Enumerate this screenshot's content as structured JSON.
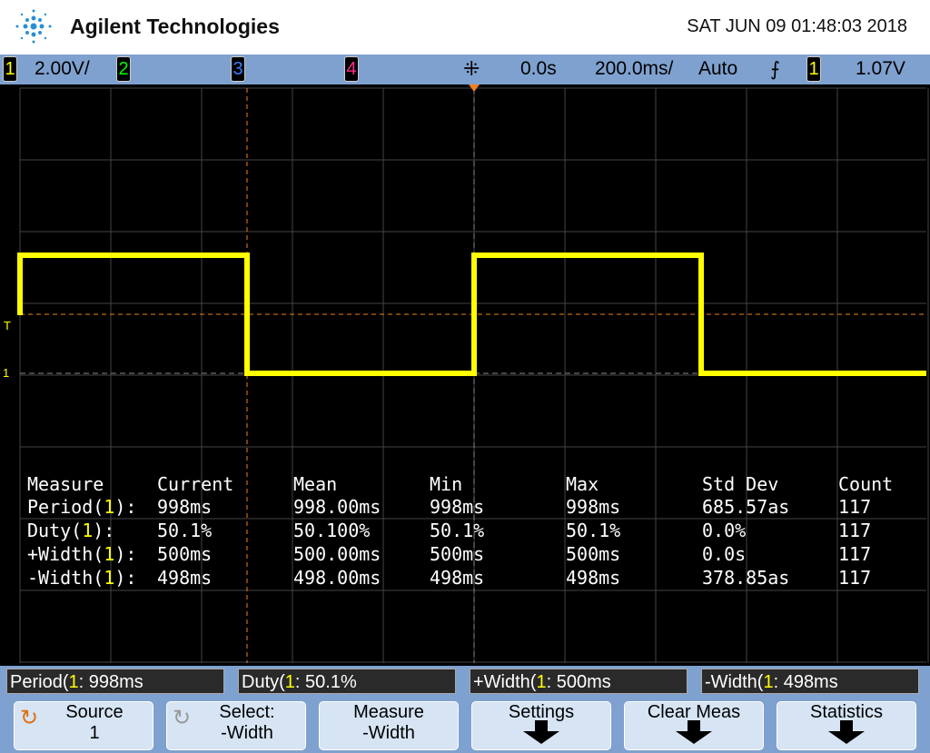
{
  "header": {
    "brand": "Agilent Technologies",
    "datetime": "SAT JUN 09 01:48:03 2018"
  },
  "status_bar": {
    "ch1": "1",
    "ch1_scale": "2.00V/",
    "ch2": "2",
    "ch3": "3",
    "ch4": "4",
    "time_offset": "0.0s",
    "time_scale": "200.0ms/",
    "trigger_mode": "Auto",
    "trigger_source": "1",
    "trigger_level": "1.07V",
    "colors": {
      "ch1": "#ffff00",
      "ch2": "#00ff00",
      "ch3": "#3a7bff",
      "ch4": "#ff2a8a"
    }
  },
  "markers": {
    "trigger_level": "T",
    "ch1_ground": "1"
  },
  "statistics": {
    "headers": [
      "Measure",
      "Current",
      "Mean",
      "Min",
      "Max",
      "Std Dev",
      "Count"
    ],
    "rows": [
      {
        "name": "Period",
        "src": "1",
        "cells": [
          "998ms",
          "998.00ms",
          "998ms",
          "998ms",
          "685.57as",
          "117"
        ]
      },
      {
        "name": "Duty",
        "src": "1",
        "cells": [
          "50.1%",
          "50.100%",
          "50.1%",
          "50.1%",
          "0.0%",
          "117"
        ]
      },
      {
        "name": "+Width",
        "src": "1",
        "cells": [
          "500ms",
          "500.00ms",
          "500ms",
          "500ms",
          "0.0s",
          "117"
        ]
      },
      {
        "name": "-Width",
        "src": "1",
        "cells": [
          "498ms",
          "498.00ms",
          "498ms",
          "498ms",
          "378.85as",
          "117"
        ]
      }
    ]
  },
  "readouts": [
    {
      "name": "Period",
      "src": "1",
      "value": ": 998ms"
    },
    {
      "name": "Duty",
      "src": "1",
      "value": ": 50.1%"
    },
    {
      "name": "+Width",
      "src": "1",
      "value": ": 500ms"
    },
    {
      "name": "-Width",
      "src": "1",
      "value": ": 498ms"
    }
  ],
  "softkeys": [
    {
      "line1": "Source",
      "line2": "1",
      "icon": "rotate-knob-icon"
    },
    {
      "line1": "Select:",
      "line2": "-Width",
      "icon": "rotate-knob-icon"
    },
    {
      "line1": "Measure",
      "line2": "-Width"
    },
    {
      "line1": "Settings",
      "icon": "down-arrow-icon"
    },
    {
      "line1": "Clear Meas",
      "icon": "down-arrow-icon"
    },
    {
      "line1": "Statistics",
      "icon": "down-arrow-icon"
    }
  ]
}
